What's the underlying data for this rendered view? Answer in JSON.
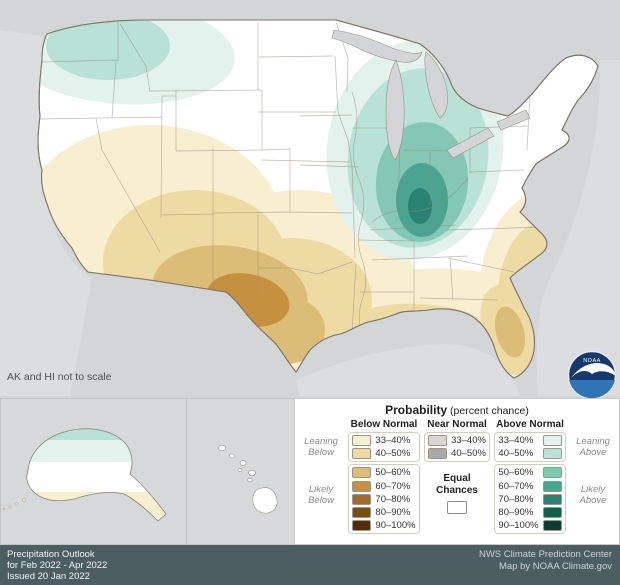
{
  "map": {
    "note": "AK and HI not to scale",
    "background": "#d4d5d6",
    "us_fill": "#ffffff",
    "outline_color": "#837a70"
  },
  "legend": {
    "title": "Probability",
    "title_suffix": " (percent chance)",
    "below": {
      "header": "Below Normal",
      "leaning": "Leaning Below",
      "likely": "Likely Below",
      "items": [
        {
          "label": "33–40%",
          "color": "#f8efd1"
        },
        {
          "label": "40–50%",
          "color": "#eedba4"
        },
        {
          "label": "50–60%",
          "color": "#dcbd78"
        },
        {
          "label": "60–70%",
          "color": "#c6913f"
        },
        {
          "label": "70–80%",
          "color": "#a06c28"
        },
        {
          "label": "80–90%",
          "color": "#7a4c16"
        },
        {
          "label": "90–100%",
          "color": "#522f0a"
        }
      ]
    },
    "near": {
      "header": "Near Normal",
      "equal": "Equal Chances",
      "equal_color": "#ffffff",
      "items": [
        {
          "label": "33–40%",
          "color": "#d6d6d6"
        },
        {
          "label": "40–50%",
          "color": "#a9a9a9"
        }
      ]
    },
    "above": {
      "header": "Above Normal",
      "leaning": "Leaning Above",
      "likely": "Likely Above",
      "items": [
        {
          "label": "33–40%",
          "color": "#e3f2ed"
        },
        {
          "label": "40–50%",
          "color": "#b8e2d5"
        },
        {
          "label": "50–60%",
          "color": "#83c7b4"
        },
        {
          "label": "60–70%",
          "color": "#4aa491"
        },
        {
          "label": "70–80%",
          "color": "#2b8272"
        },
        {
          "label": "80–90%",
          "color": "#145e4d"
        },
        {
          "label": "90–100%",
          "color": "#0a3e30"
        }
      ]
    }
  },
  "logo": {
    "text": "NOAA"
  },
  "footer": {
    "line1": "Precipitation Outlook",
    "line2": "for Feb 2022 - Apr 2022",
    "line3": "Issued 20 Jan 2022",
    "right1": "NWS Climate Prediction Center",
    "right2": "Map by NOAA Climate.gov"
  }
}
